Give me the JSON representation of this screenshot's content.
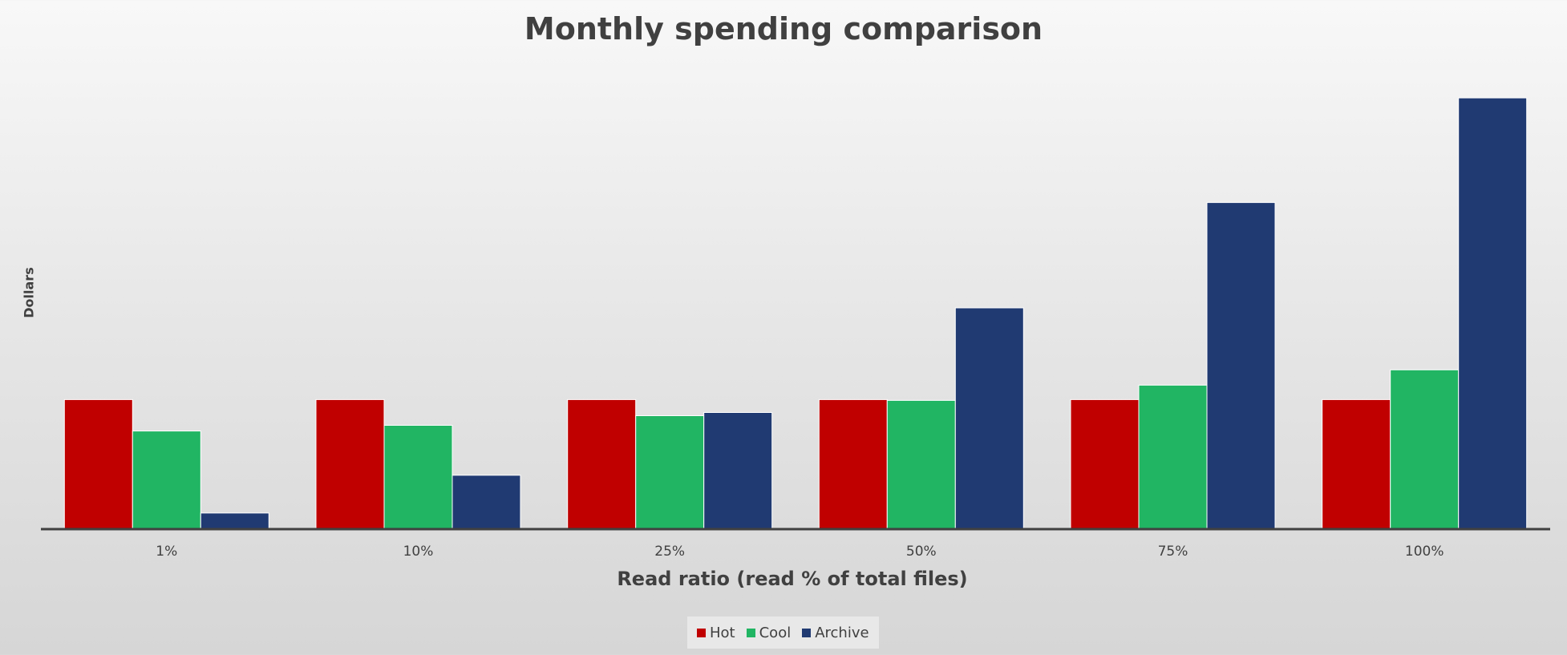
{
  "chart_data": {
    "type": "bar",
    "title": "Monthly spending comparison",
    "xlabel": "Read ratio (read % of total files)",
    "ylabel": "Dollars",
    "categories": [
      "1%",
      "10%",
      "25%",
      "50%",
      "75%",
      "100%"
    ],
    "series": [
      {
        "name": "Hot",
        "color": "#c00000",
        "values": [
          160,
          160,
          160,
          160,
          160,
          160
        ]
      },
      {
        "name": "Cool",
        "color": "#21b563",
        "values": [
          121,
          128,
          140,
          159,
          178,
          197
        ]
      },
      {
        "name": "Archive",
        "color": "#203a72",
        "values": [
          19,
          66,
          144,
          274,
          405,
          535
        ]
      }
    ],
    "ylim": [
      0,
      560
    ],
    "grid": false,
    "legend_position": "bottom",
    "value_labels": false,
    "y_tick_labels": false
  }
}
